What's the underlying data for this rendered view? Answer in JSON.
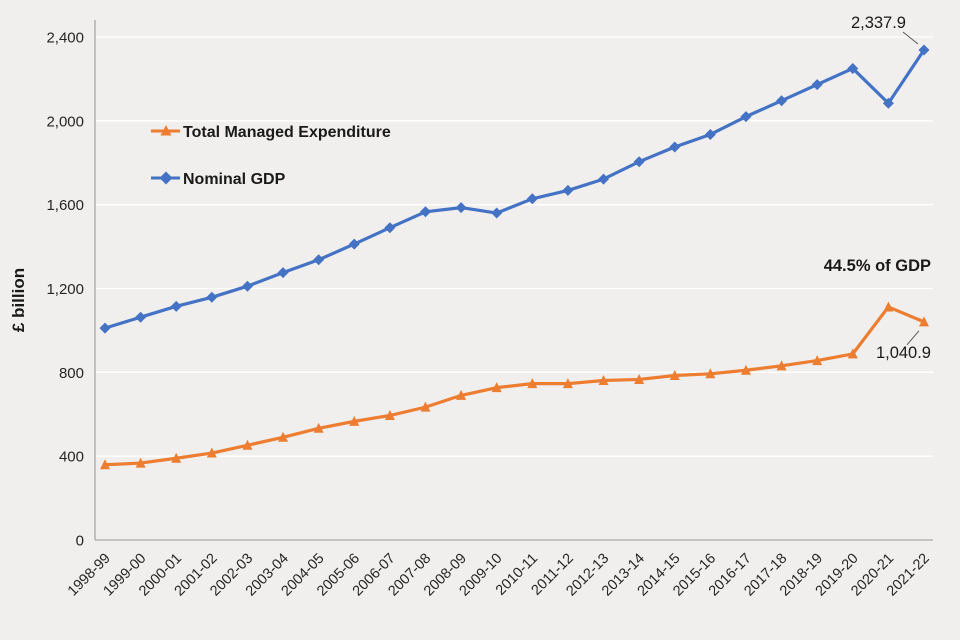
{
  "chart_data": {
    "type": "line",
    "title": "",
    "xlabel": "",
    "ylabel": "£ billion",
    "ylim": [
      0,
      2400
    ],
    "yticks": [
      0,
      400,
      800,
      1200,
      1600,
      2000,
      2400
    ],
    "ytick_labels": [
      "0",
      "400",
      "800",
      "1,200",
      "1,600",
      "2,000",
      "2,400"
    ],
    "grid": true,
    "legend_position": "top-left-inside",
    "categories": [
      "1998-99",
      "1999-00",
      "2000-01",
      "2001-02",
      "2002-03",
      "2003-04",
      "2004-05",
      "2005-06",
      "2006-07",
      "2007-08",
      "2008-09",
      "2009-10",
      "2010-11",
      "2011-12",
      "2012-13",
      "2013-14",
      "2014-15",
      "2015-16",
      "2016-17",
      "2017-18",
      "2018-19",
      "2019-20",
      "2020-21",
      "2021-22"
    ],
    "series": [
      {
        "name": "Total Managed Expenditure",
        "color": "#ED7D31",
        "marker": "triangle",
        "values": [
          359,
          367,
          390,
          415,
          452,
          490,
          533,
          566,
          594,
          634,
          690,
          727,
          746,
          746,
          761,
          766,
          785,
          793,
          810,
          831,
          856,
          888,
          1112,
          1040.9
        ]
      },
      {
        "name": "Nominal GDP",
        "color": "#4472C4",
        "marker": "diamond",
        "values": [
          1011,
          1063,
          1115,
          1158,
          1211,
          1276,
          1337,
          1412,
          1490,
          1566,
          1586,
          1560,
          1628,
          1668,
          1722,
          1805,
          1875,
          1935,
          2020,
          2096,
          2173,
          2250,
          2084,
          2337.9
        ]
      }
    ],
    "annotations": {
      "gdp_final": "2,337.9",
      "tme_percent": "44.5% of GDP",
      "tme_final": "1,040.9"
    }
  }
}
